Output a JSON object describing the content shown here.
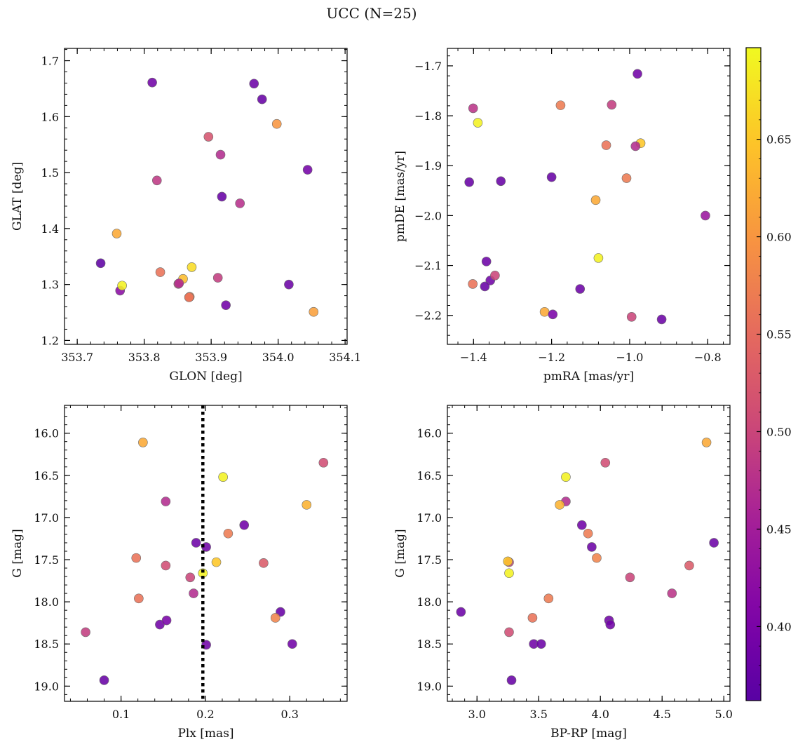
{
  "chart_data": {
    "type": "scatter",
    "title": "UCC (N=25)",
    "colorbar": {
      "range": [
        0.362,
        0.697
      ],
      "ticks": [
        0.4,
        0.45,
        0.5,
        0.55,
        0.6,
        0.65
      ],
      "tick_labels": [
        "0.40",
        "0.45",
        "0.50",
        "0.55",
        "0.60",
        "0.65"
      ],
      "colormap": "plasma"
    },
    "panels": [
      {
        "id": "glon-glat",
        "xlabel": "GLON [deg]",
        "ylabel": "GLAT [deg]",
        "xlim": [
          353.681,
          354.103
        ],
        "ylim": [
          1.193,
          1.722
        ],
        "xticks": [
          353.7,
          353.8,
          353.9,
          354.0,
          354.1
        ],
        "xtick_labels": [
          "353.7",
          "353.8",
          "353.9",
          "354.0",
          "354.1"
        ],
        "yticks": [
          1.2,
          1.3,
          1.4,
          1.5,
          1.6,
          1.7
        ],
        "ytick_labels": [
          "1.2",
          "1.3",
          "1.4",
          "1.5",
          "1.6",
          "1.7"
        ],
        "y_inverted": false,
        "x": [
          353.812,
          353.964,
          353.976,
          353.998,
          353.896,
          353.914,
          353.819,
          354.044,
          353.916,
          353.943,
          353.759,
          353.735,
          353.764,
          353.767,
          353.824,
          353.871,
          353.851,
          353.858,
          353.91,
          353.868,
          353.922,
          354.016,
          354.053,
          353.852,
          353.867
        ],
        "y": [
          1.661,
          1.659,
          1.631,
          1.587,
          1.564,
          1.532,
          1.486,
          1.505,
          1.457,
          1.445,
          1.391,
          1.338,
          1.289,
          1.298,
          1.322,
          1.331,
          1.301,
          1.31,
          1.312,
          1.278,
          1.263,
          1.3,
          1.251,
          1.302,
          1.277
        ],
        "c": [
          0.39,
          0.385,
          0.38,
          0.6,
          0.52,
          0.47,
          0.485,
          0.395,
          0.38,
          0.475,
          0.62,
          0.37,
          0.42,
          0.69,
          0.56,
          0.67,
          0.51,
          0.64,
          0.49,
          0.58,
          0.39,
          0.385,
          0.61,
          0.47,
          0.56
        ]
      },
      {
        "id": "pmra-pmde",
        "xlabel": "pmRA [mas/yr]",
        "ylabel": "pmDE [mas/yr]",
        "xlim": [
          -1.467,
          -0.743
        ],
        "ylim": [
          -2.258,
          -1.665
        ],
        "xticks": [
          -1.4,
          -1.2,
          -1.0,
          -0.8
        ],
        "xtick_labels": [
          "−1.4",
          "−1.2",
          "−1.0",
          "−0.8"
        ],
        "yticks": [
          -2.2,
          -2.1,
          -2.0,
          -1.9,
          -1.8,
          -1.7
        ],
        "ytick_labels": [
          "−2.2",
          "−2.1",
          "−2.0",
          "−1.9",
          "−1.8",
          "−1.7"
        ],
        "y_inverted": false,
        "x": [
          -0.98,
          -1.401,
          -1.177,
          -1.046,
          -1.389,
          -0.972,
          -1.06,
          -0.985,
          -1.411,
          -1.33,
          -1.2,
          -1.008,
          -1.087,
          -0.806,
          -1.367,
          -1.357,
          -1.371,
          -1.345,
          -1.402,
          -1.08,
          -1.127,
          -1.218,
          -1.197,
          -0.995,
          -0.918
        ],
        "y": [
          -1.716,
          -1.785,
          -1.779,
          -1.778,
          -1.814,
          -1.855,
          -1.859,
          -1.861,
          -1.933,
          -1.931,
          -1.923,
          -1.925,
          -1.969,
          -2.0,
          -2.092,
          -2.13,
          -2.142,
          -2.12,
          -2.137,
          -2.085,
          -2.147,
          -2.193,
          -2.198,
          -2.203,
          -2.208
        ],
        "c": [
          0.39,
          0.48,
          0.57,
          0.49,
          0.69,
          0.65,
          0.56,
          0.47,
          0.38,
          0.38,
          0.38,
          0.57,
          0.62,
          0.44,
          0.385,
          0.39,
          0.38,
          0.5,
          0.56,
          0.69,
          0.385,
          0.62,
          0.4,
          0.5,
          0.385
        ]
      },
      {
        "id": "plx-g",
        "xlabel": "Plx [mas]",
        "ylabel": "G [mag]",
        "xlim": [
          0.033,
          0.368
        ],
        "ylim": [
          15.67,
          19.18
        ],
        "xticks": [
          0.1,
          0.2,
          0.3
        ],
        "xtick_labels": [
          "0.1",
          "0.2",
          "0.3"
        ],
        "yticks": [
          16.0,
          16.5,
          17.0,
          17.5,
          18.0,
          18.5,
          19.0
        ],
        "ytick_labels": [
          "16.0",
          "16.5",
          "17.0",
          "17.5",
          "18.0",
          "18.5",
          "19.0"
        ],
        "y_inverted": true,
        "vline": 0.197,
        "x": [
          0.126,
          0.34,
          0.221,
          0.153,
          0.32,
          0.246,
          0.189,
          0.201,
          0.227,
          0.118,
          0.153,
          0.213,
          0.269,
          0.182,
          0.197,
          0.186,
          0.121,
          0.058,
          0.146,
          0.154,
          0.289,
          0.283,
          0.201,
          0.303,
          0.08
        ],
        "y": [
          16.11,
          16.35,
          16.52,
          16.81,
          16.85,
          17.09,
          17.3,
          17.35,
          17.19,
          17.48,
          17.57,
          17.53,
          17.54,
          17.71,
          17.66,
          17.9,
          17.96,
          18.36,
          18.27,
          18.22,
          18.12,
          18.19,
          18.51,
          18.5,
          18.93
        ],
        "c": [
          0.62,
          0.51,
          0.69,
          0.47,
          0.63,
          0.39,
          0.385,
          0.39,
          0.57,
          0.56,
          0.51,
          0.65,
          0.53,
          0.5,
          0.69,
          0.47,
          0.56,
          0.49,
          0.39,
          0.4,
          0.38,
          0.58,
          0.39,
          0.39,
          0.38
        ]
      },
      {
        "id": "bprp-g",
        "xlabel": "BP-RP [mag]",
        "ylabel": "G [mag]",
        "xlim": [
          2.76,
          5.05
        ],
        "ylim": [
          15.67,
          19.18
        ],
        "xticks": [
          3.0,
          3.5,
          4.0,
          4.5,
          5.0
        ],
        "xtick_labels": [
          "3.0",
          "3.5",
          "4.0",
          "4.5",
          "5.0"
        ],
        "yticks": [
          16.0,
          16.5,
          17.0,
          17.5,
          18.0,
          18.5,
          19.0
        ],
        "ytick_labels": [
          "16.0",
          "16.5",
          "17.0",
          "17.5",
          "18.0",
          "18.5",
          "19.0"
        ],
        "y_inverted": true,
        "x": [
          4.86,
          4.04,
          3.72,
          3.72,
          3.67,
          3.85,
          3.9,
          3.93,
          3.97,
          3.26,
          3.25,
          3.26,
          4.72,
          4.92,
          4.24,
          4.58,
          3.58,
          3.45,
          3.26,
          2.87,
          4.07,
          4.08,
          3.46,
          3.52,
          3.28
        ],
        "y": [
          16.11,
          16.35,
          16.52,
          16.81,
          16.85,
          17.09,
          17.19,
          17.35,
          17.48,
          17.53,
          17.52,
          17.66,
          17.57,
          17.3,
          17.71,
          17.9,
          17.96,
          18.19,
          18.36,
          18.12,
          18.22,
          18.27,
          18.5,
          18.5,
          18.93
        ],
        "c": [
          0.62,
          0.51,
          0.69,
          0.47,
          0.63,
          0.39,
          0.57,
          0.385,
          0.58,
          0.5,
          0.65,
          0.69,
          0.53,
          0.385,
          0.5,
          0.48,
          0.57,
          0.56,
          0.51,
          0.385,
          0.39,
          0.39,
          0.39,
          0.385,
          0.38
        ]
      }
    ]
  }
}
